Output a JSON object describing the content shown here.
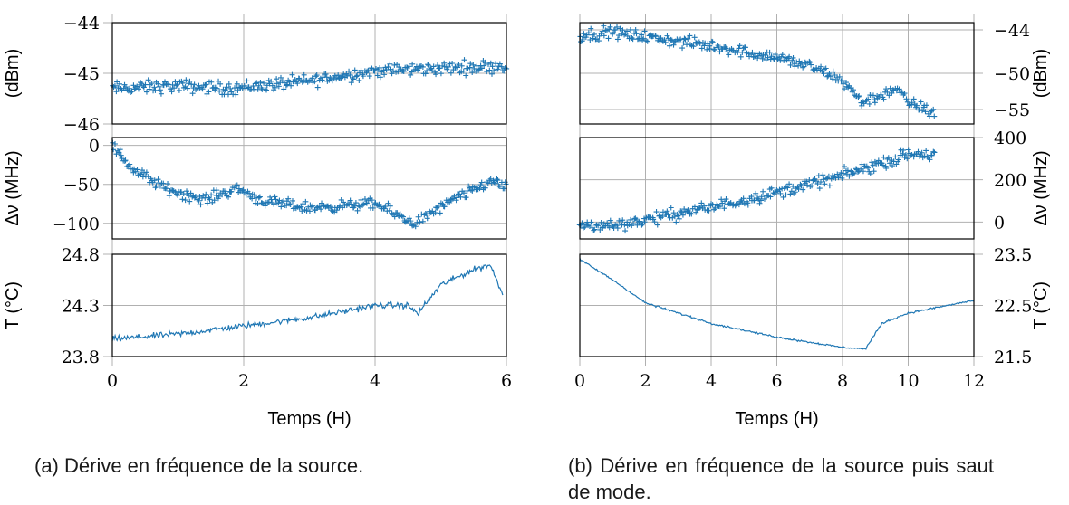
{
  "captions": {
    "a": "(a) Dérive en fréquence de la source.",
    "b": "(b) Dérive en fréquence de la source puis saut de mode."
  },
  "colors": {
    "series": "#1f77b4",
    "grid": "#b0b0b0",
    "axis": "#000000"
  },
  "chart_data": [
    {
      "id": "a-power",
      "type": "scatter",
      "ylabel": "(dBm)",
      "xlabel": "",
      "xlim": [
        0,
        6
      ],
      "ylim": [
        -46,
        -44
      ],
      "xticks": [
        0,
        2,
        4,
        6
      ],
      "yticks": [
        -46,
        -45,
        -44
      ],
      "ytick_labels": [
        "−46",
        "−45",
        "−44"
      ],
      "marker": "+",
      "trend": [
        [
          0,
          -45.3
        ],
        [
          1,
          -45.25
        ],
        [
          1.8,
          -45.3
        ],
        [
          3,
          -45.15
        ],
        [
          4,
          -44.95
        ],
        [
          5,
          -44.9
        ],
        [
          6,
          -44.85
        ]
      ],
      "noise": 0.11
    },
    {
      "id": "a-freq",
      "type": "scatter",
      "ylabel": "Δν (MHz)",
      "xlabel": "",
      "xlim": [
        0,
        6
      ],
      "ylim": [
        -120,
        10
      ],
      "xticks": [
        0,
        2,
        4,
        6
      ],
      "yticks": [
        -100,
        -50,
        0
      ],
      "ytick_labels": [
        "−100",
        "−50",
        "0"
      ],
      "marker": "+",
      "trend": [
        [
          0,
          0
        ],
        [
          0.3,
          -30
        ],
        [
          0.8,
          -55
        ],
        [
          1.4,
          -70
        ],
        [
          1.9,
          -55
        ],
        [
          2.3,
          -72
        ],
        [
          3,
          -80
        ],
        [
          4,
          -75
        ],
        [
          4.6,
          -100
        ],
        [
          5.3,
          -65
        ],
        [
          5.8,
          -45
        ],
        [
          6,
          -55
        ]
      ],
      "noise": 6
    },
    {
      "id": "a-temp",
      "type": "line",
      "ylabel": "T (°C)",
      "xlabel": "Temps (H)",
      "xlim": [
        0,
        6
      ],
      "ylim": [
        23.8,
        24.8
      ],
      "xticks": [
        0,
        2,
        4,
        6
      ],
      "yticks": [
        23.8,
        24.3,
        24.8
      ],
      "ytick_labels": [
        "23.8",
        "24.3",
        "24.8"
      ],
      "xtick_labels": [
        "0",
        "2",
        "4",
        "6"
      ],
      "trend": [
        [
          0,
          23.97
        ],
        [
          1,
          24.02
        ],
        [
          2,
          24.1
        ],
        [
          3,
          24.18
        ],
        [
          4,
          24.3
        ],
        [
          4.5,
          24.3
        ],
        [
          4.65,
          24.22
        ],
        [
          5,
          24.5
        ],
        [
          5.5,
          24.65
        ],
        [
          5.75,
          24.7
        ],
        [
          5.85,
          24.55
        ],
        [
          5.95,
          24.4
        ]
      ],
      "noise": 0.025
    },
    {
      "id": "b-power",
      "type": "scatter",
      "ylabel": "(dBm)",
      "xlabel": "",
      "xlim": [
        0,
        12
      ],
      "ylim": [
        -57,
        -43
      ],
      "xticks": [
        0,
        2,
        4,
        6,
        8,
        10,
        12
      ],
      "yticks": [
        -55,
        -50,
        -44
      ],
      "ytick_labels": [
        "−55",
        "−50",
        "−44"
      ],
      "marker": "+",
      "trend": [
        [
          0,
          -44.8
        ],
        [
          1,
          -44.3
        ],
        [
          2,
          -45
        ],
        [
          4,
          -46.2
        ],
        [
          6,
          -47.8
        ],
        [
          7,
          -49
        ],
        [
          8,
          -51
        ],
        [
          8.6,
          -54
        ],
        [
          9.2,
          -53
        ],
        [
          9.6,
          -52
        ],
        [
          10,
          -54
        ],
        [
          10.8,
          -55.5
        ]
      ],
      "noise": 0.7
    },
    {
      "id": "b-freq",
      "type": "scatter",
      "ylabel": "Δν (MHz)",
      "xlabel": "",
      "xlim": [
        0,
        12
      ],
      "ylim": [
        -80,
        400
      ],
      "xticks": [
        0,
        2,
        4,
        6,
        8,
        10,
        12
      ],
      "yticks": [
        0,
        200,
        400
      ],
      "ytick_labels": [
        "0",
        "200",
        "400"
      ],
      "marker": "+",
      "trend": [
        [
          0,
          -20
        ],
        [
          1,
          -15
        ],
        [
          2,
          10
        ],
        [
          4,
          70
        ],
        [
          6,
          140
        ],
        [
          8,
          220
        ],
        [
          9,
          270
        ],
        [
          10,
          320
        ],
        [
          10.8,
          320
        ]
      ],
      "noise": 25
    },
    {
      "id": "b-temp",
      "type": "line",
      "ylabel": "T (°C)",
      "xlabel": "Temps (H)",
      "xlim": [
        0,
        12
      ],
      "ylim": [
        21.5,
        23.5
      ],
      "xticks": [
        0,
        2,
        4,
        6,
        8,
        10,
        12
      ],
      "yticks": [
        21.5,
        22.5,
        23.5
      ],
      "ytick_labels": [
        "21.5",
        "22.5",
        "23.5"
      ],
      "xtick_labels": [
        "0",
        "2",
        "4",
        "6",
        "8",
        "10",
        "12"
      ],
      "trend": [
        [
          0,
          23.4
        ],
        [
          1,
          23.0
        ],
        [
          2,
          22.55
        ],
        [
          4,
          22.15
        ],
        [
          6,
          21.88
        ],
        [
          8,
          21.68
        ],
        [
          8.7,
          21.65
        ],
        [
          9.2,
          22.15
        ],
        [
          10,
          22.35
        ],
        [
          12,
          22.6
        ]
      ],
      "noise": 0.015
    }
  ]
}
